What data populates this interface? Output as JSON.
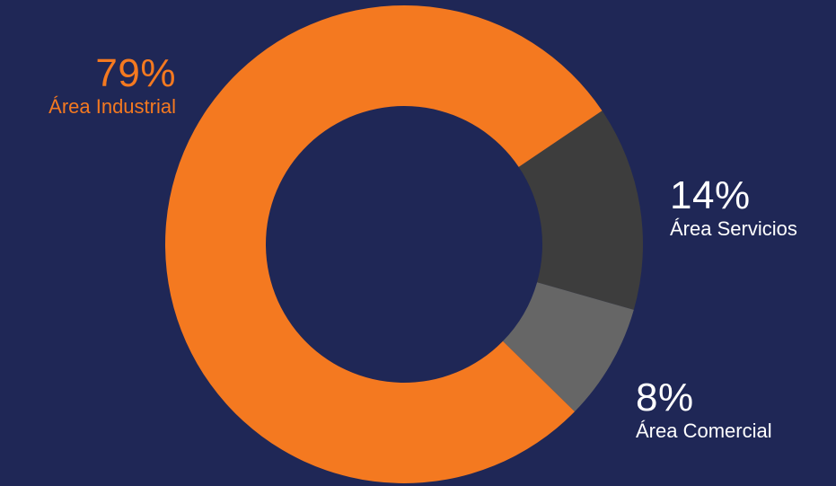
{
  "colors": {
    "background": "#1f2756",
    "industrial": "#f47920",
    "servicios": "#3d3d3d",
    "comercial": "#666666",
    "label_white": "#ffffff"
  },
  "chart_data": {
    "type": "pie",
    "title": "",
    "donut": true,
    "categories": [
      "Área Industrial",
      "Área Servicios",
      "Área Comercial"
    ],
    "values": [
      79,
      14,
      8
    ],
    "labels": {
      "industrial": {
        "pct": "79%",
        "name": "Área Industrial"
      },
      "servicios": {
        "pct": "14%",
        "name": "Área Servicios"
      },
      "comercial": {
        "pct": "8%",
        "name": "Área Comercial"
      }
    }
  }
}
